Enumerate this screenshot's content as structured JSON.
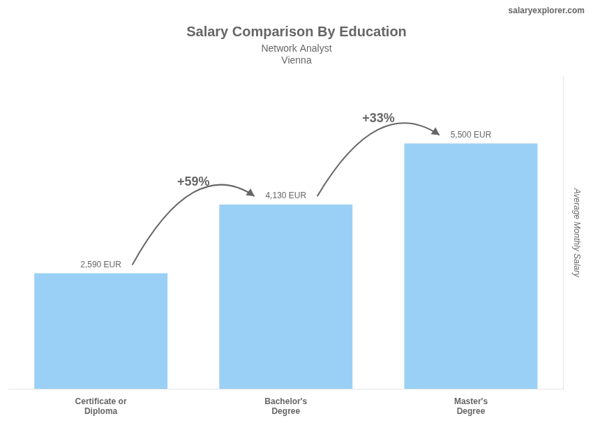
{
  "chart_data": {
    "type": "bar",
    "title": "Salary Comparison By Education",
    "subtitle": [
      "Network Analyst",
      "Vienna"
    ],
    "brand": "salaryexplorer.com",
    "ylabel": "Average Monthly Salary",
    "categories": [
      "Certificate or\nDiploma",
      "Bachelor's\nDegree",
      "Master's\nDegree"
    ],
    "values": [
      2590,
      4130,
      5500
    ],
    "value_labels": [
      "2,590 EUR",
      "4,130 EUR",
      "5,500 EUR"
    ],
    "data_labels": true,
    "annotations": [
      "+59%",
      "+33%"
    ],
    "ylim": [
      0,
      7000
    ],
    "grid": false,
    "tick_labels": "x"
  }
}
